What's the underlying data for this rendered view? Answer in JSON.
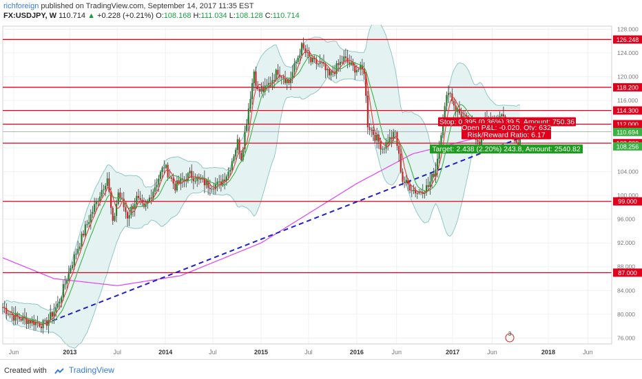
{
  "header": {
    "author": "richforeign",
    "published": "published on TradingView.com, September 14, 2017 11:35 EST",
    "symbol": "FX:USDJPY, W",
    "last": "110.714",
    "change_arrow": "▲",
    "change": "+0.228 (+0.21%)",
    "o_label": "O:",
    "o": "108.168",
    "h_label": "H:",
    "h": "111.034",
    "l_label": "L:",
    "l": "108.128",
    "c_label": "C:",
    "c": "110.714"
  },
  "footer": {
    "created_with": "Created with",
    "brand": "TradingView"
  },
  "chart_data": {
    "type": "candlestick",
    "symbol": "FX:USDJPY",
    "interval": "W",
    "ylim": [
      75,
      128.5
    ],
    "x_range": [
      "2012-04-20",
      "2018-08-31"
    ],
    "y_ticks": [
      76,
      80,
      84,
      88,
      92,
      96,
      100,
      104,
      108,
      112,
      116,
      120,
      124,
      128
    ],
    "x_ticks": [
      {
        "label": "Jun",
        "date": "2012-06-01"
      },
      {
        "label": "2013",
        "date": "2013-01-01"
      },
      {
        "label": "Jul",
        "date": "2013-07-01"
      },
      {
        "label": "2014",
        "date": "2014-01-01"
      },
      {
        "label": "Jul",
        "date": "2014-07-01"
      },
      {
        "label": "2015",
        "date": "2015-01-01"
      },
      {
        "label": "Jul",
        "date": "2015-07-01"
      },
      {
        "label": "2016",
        "date": "2016-01-01"
      },
      {
        "label": "Jun",
        "date": "2016-06-01"
      },
      {
        "label": "2017",
        "date": "2017-01-01"
      },
      {
        "label": "Jun",
        "date": "2017-06-01"
      },
      {
        "label": "2018",
        "date": "2018-01-01"
      },
      {
        "label": "Jun",
        "date": "2018-06-01"
      }
    ],
    "horizontal_levels": [
      126.248,
      118.2,
      114.3,
      112.0,
      108.8,
      99.0,
      87.0
    ],
    "price_labels": [
      {
        "value": 126.248,
        "text": "126.248",
        "color": "#e0001b"
      },
      {
        "value": 118.2,
        "text": "118.200",
        "color": "#e0001b"
      },
      {
        "value": 114.3,
        "text": "114.300",
        "color": "#e0001b"
      },
      {
        "value": 112.0,
        "text": "112.000",
        "color": "#e0001b"
      },
      {
        "value": 111.089,
        "text": "111.089",
        "color": "#e0001b"
      },
      {
        "value": 110.714,
        "text": "110.714",
        "color": "#222222"
      },
      {
        "value": 110.694,
        "text": "110.694",
        "color": "#3cb043"
      },
      {
        "value": 108.8,
        "text": "108.800",
        "color": "#e0001b"
      },
      {
        "value": 108.256,
        "text": "108.256",
        "color": "#3cb043"
      },
      {
        "value": 99.0,
        "text": "99.000",
        "color": "#e0001b"
      },
      {
        "value": 87.0,
        "text": "87.000",
        "color": "#e0001b"
      }
    ],
    "trendline": {
      "start": [
        "2012-09-28",
        78.4
      ],
      "end": [
        "2018-02-09",
        112.2
      ],
      "color": "#1f1fc8",
      "style": "dashed"
    },
    "anchors": [
      [
        "2012-04-20",
        81.2
      ],
      [
        "2012-06-01",
        79.6
      ],
      [
        "2012-08-10",
        78.8
      ],
      [
        "2012-09-28",
        78.2
      ],
      [
        "2012-11-16",
        81.5
      ],
      [
        "2013-01-04",
        88.0
      ],
      [
        "2013-03-01",
        94.5
      ],
      [
        "2013-05-03",
        101.0
      ],
      [
        "2013-05-24",
        103.0
      ],
      [
        "2013-06-14",
        95.0
      ],
      [
        "2013-07-05",
        100.5
      ],
      [
        "2013-08-09",
        96.5
      ],
      [
        "2013-09-13",
        99.5
      ],
      [
        "2013-10-11",
        97.5
      ],
      [
        "2013-12-27",
        105.0
      ],
      [
        "2014-02-07",
        101.5
      ],
      [
        "2014-04-04",
        103.5
      ],
      [
        "2014-06-13",
        101.8
      ],
      [
        "2014-07-25",
        101.8
      ],
      [
        "2014-08-29",
        104.0
      ],
      [
        "2014-10-03",
        109.0
      ],
      [
        "2014-10-17",
        106.5
      ],
      [
        "2014-12-05",
        121.0
      ],
      [
        "2014-12-19",
        117.5
      ],
      [
        "2015-01-16",
        117.8
      ],
      [
        "2015-03-06",
        121.0
      ],
      [
        "2015-04-17",
        119.0
      ],
      [
        "2015-06-05",
        125.0
      ],
      [
        "2015-07-10",
        122.5
      ],
      [
        "2015-08-21",
        122.0
      ],
      [
        "2015-09-18",
        120.0
      ],
      [
        "2015-11-13",
        123.0
      ],
      [
        "2015-12-18",
        121.5
      ],
      [
        "2016-01-29",
        121.0
      ],
      [
        "2016-02-12",
        112.0
      ],
      [
        "2016-04-08",
        108.0
      ],
      [
        "2016-05-27",
        110.5
      ],
      [
        "2016-06-24",
        102.5
      ],
      [
        "2016-08-19",
        100.5
      ],
      [
        "2016-09-30",
        101.5
      ],
      [
        "2016-10-28",
        104.5
      ],
      [
        "2016-11-25",
        113.0
      ],
      [
        "2016-12-16",
        118.0
      ],
      [
        "2017-01-13",
        114.5
      ],
      [
        "2017-02-24",
        112.5
      ],
      [
        "2017-04-14",
        109.0
      ],
      [
        "2017-05-12",
        113.5
      ],
      [
        "2017-06-16",
        111.0
      ],
      [
        "2017-07-07",
        114.0
      ],
      [
        "2017-08-04",
        110.7
      ],
      [
        "2017-08-25",
        109.5
      ],
      [
        "2017-09-08",
        108.2
      ],
      [
        "2017-09-15",
        110.714
      ]
    ],
    "position_tool": {
      "stop_text": "Stop: 0.395 (0.36%) 39.5, Amount: 750.36",
      "open_pl_text": "Open P&L: -0.020, Qty: 632",
      "rr_text": "Risk/Reward Ratio: 6.17",
      "target_text": "Target: 2.438 (2.20%) 243.8, Amount: 2540.82",
      "stop_color": "#e0001b",
      "target_color": "#1f9c1f"
    },
    "event_marker": "3",
    "colors": {
      "up": "#2e7d32",
      "down": "#c62828",
      "level": "#e0001b",
      "ma_fast": "#e53935",
      "ma_mid": "#3cb043",
      "ma_slow": "#e040fb",
      "bands": "#8fc7c7",
      "band_fill": "#e4f3f2"
    }
  }
}
